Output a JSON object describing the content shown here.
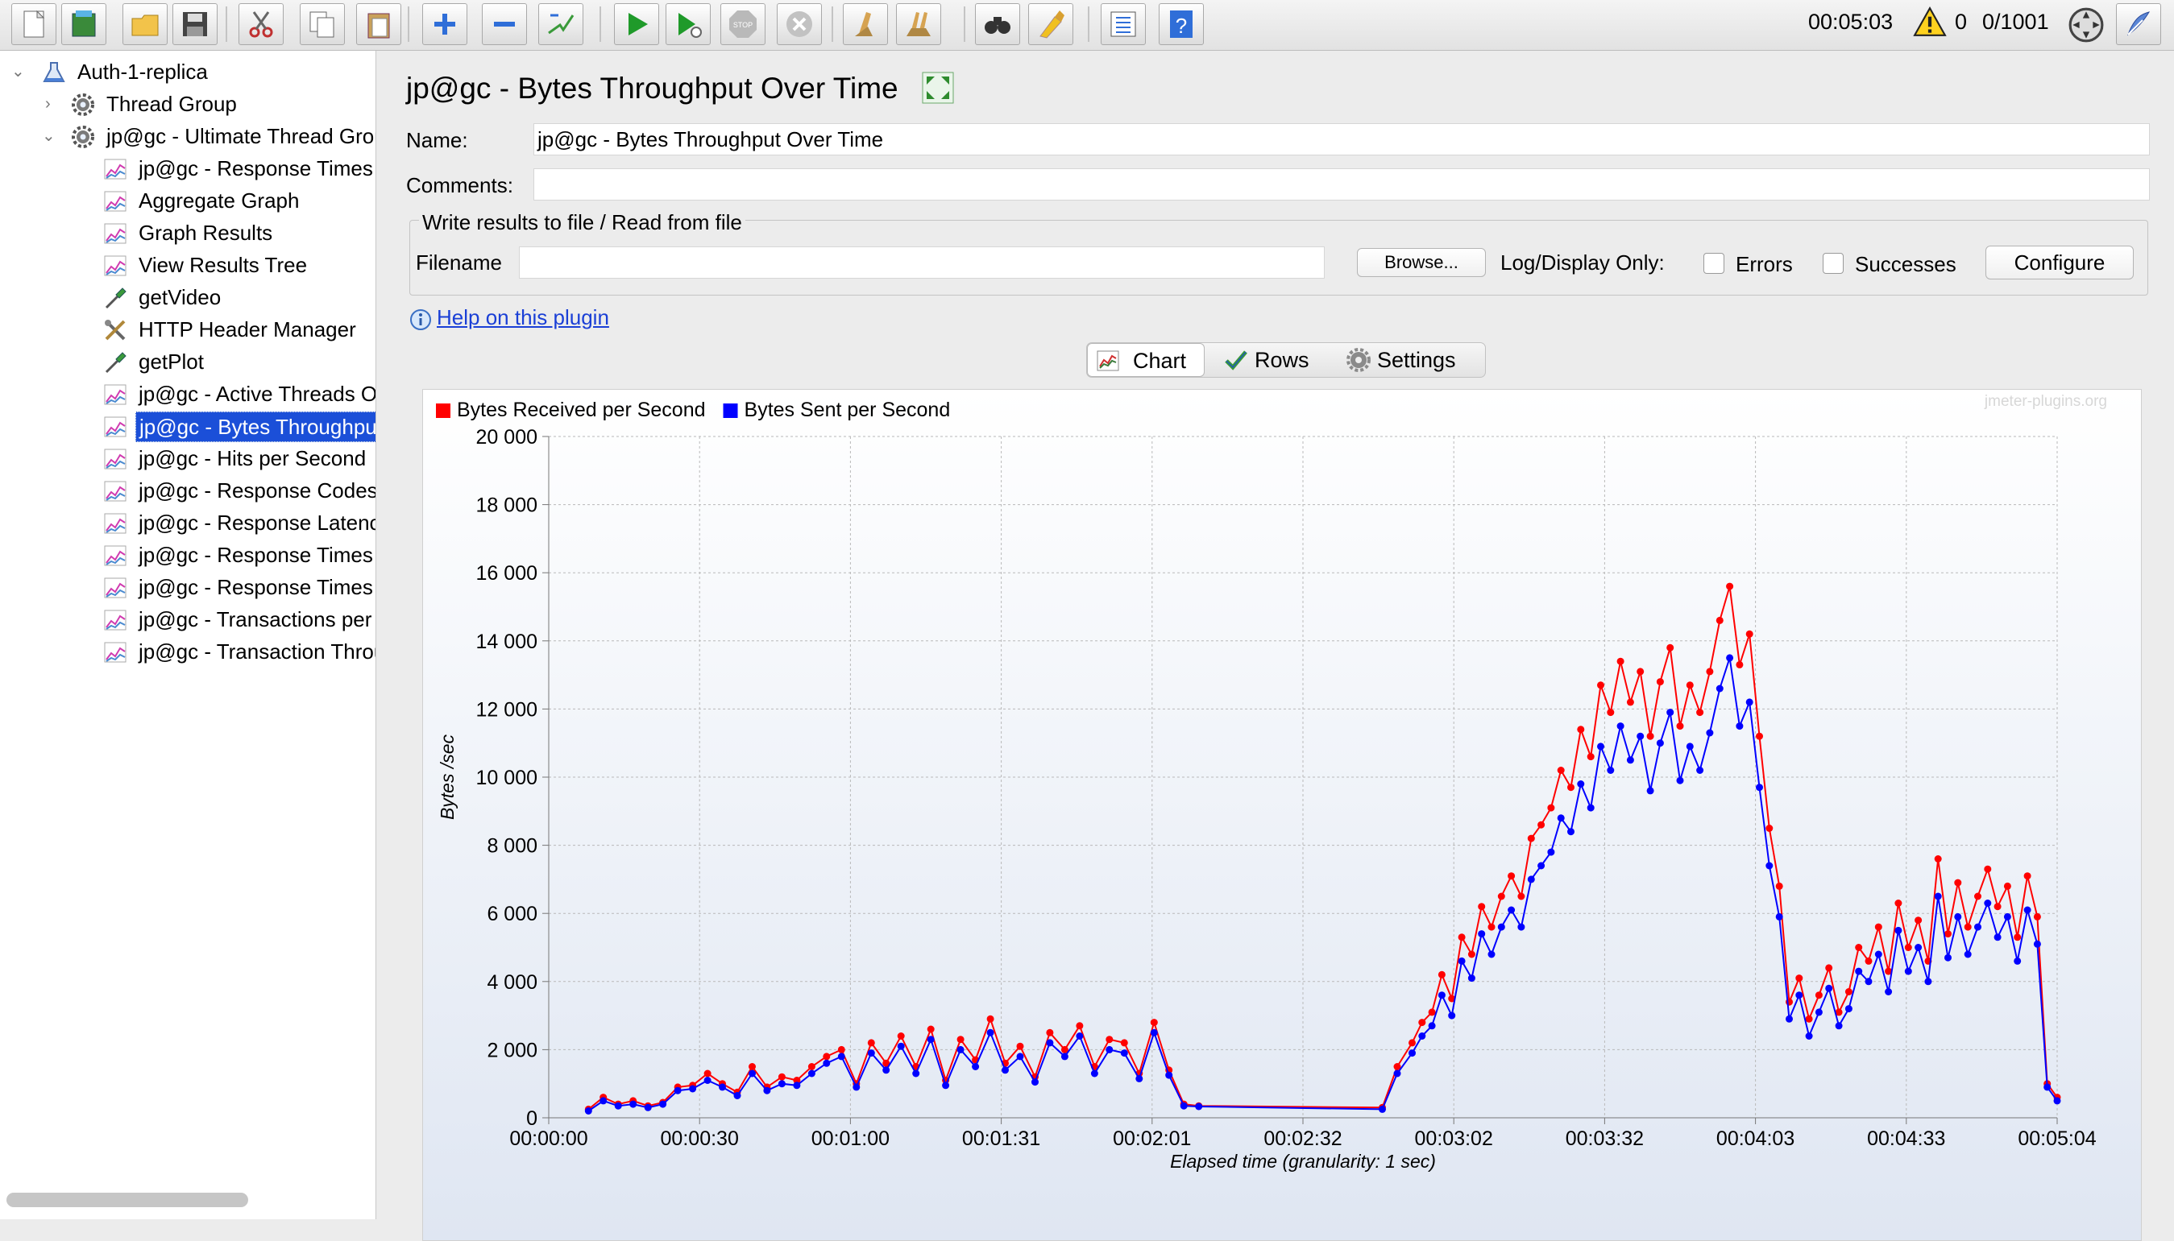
{
  "toolbar": {
    "buttons": [
      "new-icon",
      "templates-icon",
      "open-icon",
      "save-icon",
      "cut-icon",
      "copy-icon",
      "paste-icon",
      "expand-icon",
      "collapse-icon",
      "toggle-icon",
      "start-icon",
      "start-no-pauses-icon",
      "stop-icon",
      "shutdown-icon",
      "clear-icon",
      "clear-all-icon",
      "search-icon",
      "reset-search-icon",
      "function-helper-icon",
      "help-icon"
    ],
    "elapsed": "00:05:03",
    "warnings": "0",
    "threads": "0/1001"
  },
  "tree": {
    "root": "Auth-1-replica",
    "items": [
      {
        "label": "Thread Group",
        "icon": "gear-icon"
      },
      {
        "label": "jp@gc - Ultimate Thread Group",
        "icon": "gear-icon"
      },
      {
        "label": "jp@gc - Response Times Over Time",
        "icon": "graph-icon"
      },
      {
        "label": "Aggregate Graph",
        "icon": "graph-icon"
      },
      {
        "label": "Graph Results",
        "icon": "graph-icon"
      },
      {
        "label": "View Results Tree",
        "icon": "graph-icon"
      },
      {
        "label": "getVideo",
        "icon": "pipette-icon"
      },
      {
        "label": "HTTP Header Manager",
        "icon": "tools-icon"
      },
      {
        "label": "getPlot",
        "icon": "pipette-icon"
      },
      {
        "label": "jp@gc - Active Threads Over Time",
        "icon": "graph-icon"
      },
      {
        "label": "jp@gc - Bytes Throughput Over Time",
        "icon": "graph-icon"
      },
      {
        "label": "jp@gc - Hits per Second",
        "icon": "graph-icon"
      },
      {
        "label": "jp@gc - Response Codes per Second",
        "icon": "graph-icon"
      },
      {
        "label": "jp@gc - Response Latencies Over Time",
        "icon": "graph-icon"
      },
      {
        "label": "jp@gc - Response Times Distribution",
        "icon": "graph-icon"
      },
      {
        "label": "jp@gc - Response Times Percentiles",
        "icon": "graph-icon"
      },
      {
        "label": "jp@gc - Transactions per Second",
        "icon": "graph-icon"
      },
      {
        "label": "jp@gc - Transaction Throughput vs Threads",
        "icon": "graph-icon"
      }
    ]
  },
  "main": {
    "title": "jp@gc - Bytes Throughput Over Time",
    "name_label": "Name:",
    "name_value": "jp@gc - Bytes Throughput Over Time",
    "comments_label": "Comments:",
    "comments_value": "",
    "file_section_title": "Write results to file / Read from file",
    "filename_label": "Filename",
    "filename_value": "",
    "browse_label": "Browse...",
    "log_display_label": "Log/Display Only:",
    "errors_label": "Errors",
    "successes_label": "Successes",
    "configure_label": "Configure",
    "help_link": "Help on this plugin",
    "tabs": [
      {
        "label": "Chart"
      },
      {
        "label": "Rows"
      },
      {
        "label": "Settings"
      }
    ]
  },
  "chart_data": {
    "type": "line",
    "watermark": "jmeter-plugins.org",
    "xlabel": "Elapsed time (granularity: 1 sec)",
    "ylabel": "Bytes /sec",
    "x_tick_labels": [
      "00:00:00",
      "00:00:30",
      "00:01:00",
      "00:01:31",
      "00:02:01",
      "00:02:32",
      "00:03:02",
      "00:03:32",
      "00:04:03",
      "00:04:33",
      "00:05:04"
    ],
    "y_tick_labels": [
      "0",
      "2 000",
      "4 000",
      "6 000",
      "8 000",
      "10 000",
      "12 000",
      "14 000",
      "16 000",
      "18 000",
      "20 000"
    ],
    "ylim": [
      0,
      20000
    ],
    "xlim_seconds": [
      0,
      304
    ],
    "grid": true,
    "legend": "top-left",
    "series": [
      {
        "name": "Bytes Received per Second",
        "color": "#ff0000",
        "points": [
          [
            8,
            250
          ],
          [
            11,
            600
          ],
          [
            14,
            400
          ],
          [
            17,
            500
          ],
          [
            20,
            350
          ],
          [
            23,
            450
          ],
          [
            26,
            900
          ],
          [
            29,
            950
          ],
          [
            32,
            1300
          ],
          [
            35,
            1000
          ],
          [
            38,
            750
          ],
          [
            41,
            1500
          ],
          [
            44,
            900
          ],
          [
            47,
            1200
          ],
          [
            50,
            1100
          ],
          [
            53,
            1500
          ],
          [
            56,
            1800
          ],
          [
            59,
            2000
          ],
          [
            62,
            1000
          ],
          [
            65,
            2200
          ],
          [
            68,
            1600
          ],
          [
            71,
            2400
          ],
          [
            74,
            1500
          ],
          [
            77,
            2600
          ],
          [
            80,
            1100
          ],
          [
            83,
            2300
          ],
          [
            86,
            1700
          ],
          [
            89,
            2900
          ],
          [
            92,
            1600
          ],
          [
            95,
            2100
          ],
          [
            98,
            1200
          ],
          [
            101,
            2500
          ],
          [
            104,
            2000
          ],
          [
            107,
            2700
          ],
          [
            110,
            1500
          ],
          [
            113,
            2300
          ],
          [
            116,
            2200
          ],
          [
            119,
            1300
          ],
          [
            122,
            2800
          ],
          [
            125,
            1400
          ],
          [
            128,
            400
          ],
          [
            131,
            350
          ],
          [
            168,
            300
          ],
          [
            171,
            1500
          ],
          [
            174,
            2200
          ],
          [
            176,
            2800
          ],
          [
            178,
            3100
          ],
          [
            180,
            4200
          ],
          [
            182,
            3500
          ],
          [
            184,
            5300
          ],
          [
            186,
            4800
          ],
          [
            188,
            6200
          ],
          [
            190,
            5600
          ],
          [
            192,
            6500
          ],
          [
            194,
            7100
          ],
          [
            196,
            6500
          ],
          [
            198,
            8200
          ],
          [
            200,
            8600
          ],
          [
            202,
            9100
          ],
          [
            204,
            10200
          ],
          [
            206,
            9700
          ],
          [
            208,
            11400
          ],
          [
            210,
            10600
          ],
          [
            212,
            12700
          ],
          [
            214,
            11900
          ],
          [
            216,
            13400
          ],
          [
            218,
            12200
          ],
          [
            220,
            13100
          ],
          [
            222,
            11200
          ],
          [
            224,
            12800
          ],
          [
            226,
            13800
          ],
          [
            228,
            11500
          ],
          [
            230,
            12700
          ],
          [
            232,
            11900
          ],
          [
            234,
            13100
          ],
          [
            236,
            14600
          ],
          [
            238,
            15600
          ],
          [
            240,
            13300
          ],
          [
            242,
            14200
          ],
          [
            244,
            11200
          ],
          [
            246,
            8500
          ],
          [
            248,
            6800
          ],
          [
            250,
            3400
          ],
          [
            252,
            4100
          ],
          [
            254,
            2900
          ],
          [
            256,
            3600
          ],
          [
            258,
            4400
          ],
          [
            260,
            3100
          ],
          [
            262,
            3700
          ],
          [
            264,
            5000
          ],
          [
            266,
            4600
          ],
          [
            268,
            5600
          ],
          [
            270,
            4300
          ],
          [
            272,
            6300
          ],
          [
            274,
            5000
          ],
          [
            276,
            5800
          ],
          [
            278,
            4600
          ],
          [
            280,
            7600
          ],
          [
            282,
            5400
          ],
          [
            284,
            6900
          ],
          [
            286,
            5600
          ],
          [
            288,
            6500
          ],
          [
            290,
            7300
          ],
          [
            292,
            6200
          ],
          [
            294,
            6800
          ],
          [
            296,
            5300
          ],
          [
            298,
            7100
          ],
          [
            300,
            5900
          ],
          [
            302,
            1000
          ],
          [
            304,
            600
          ]
        ]
      },
      {
        "name": "Bytes Sent per Second",
        "color": "#0000ff",
        "points": [
          [
            8,
            200
          ],
          [
            11,
            500
          ],
          [
            14,
            350
          ],
          [
            17,
            400
          ],
          [
            20,
            300
          ],
          [
            23,
            400
          ],
          [
            26,
            800
          ],
          [
            29,
            850
          ],
          [
            32,
            1100
          ],
          [
            35,
            900
          ],
          [
            38,
            650
          ],
          [
            41,
            1300
          ],
          [
            44,
            800
          ],
          [
            47,
            1000
          ],
          [
            50,
            950
          ],
          [
            53,
            1300
          ],
          [
            56,
            1600
          ],
          [
            59,
            1800
          ],
          [
            62,
            900
          ],
          [
            65,
            1900
          ],
          [
            68,
            1400
          ],
          [
            71,
            2100
          ],
          [
            74,
            1300
          ],
          [
            77,
            2300
          ],
          [
            80,
            950
          ],
          [
            83,
            2000
          ],
          [
            86,
            1500
          ],
          [
            89,
            2500
          ],
          [
            92,
            1400
          ],
          [
            95,
            1800
          ],
          [
            98,
            1050
          ],
          [
            101,
            2200
          ],
          [
            104,
            1800
          ],
          [
            107,
            2400
          ],
          [
            110,
            1300
          ],
          [
            113,
            2000
          ],
          [
            116,
            1900
          ],
          [
            119,
            1150
          ],
          [
            122,
            2500
          ],
          [
            125,
            1250
          ],
          [
            128,
            350
          ],
          [
            131,
            330
          ],
          [
            168,
            250
          ],
          [
            171,
            1300
          ],
          [
            174,
            1900
          ],
          [
            176,
            2400
          ],
          [
            178,
            2700
          ],
          [
            180,
            3600
          ],
          [
            182,
            3000
          ],
          [
            184,
            4600
          ],
          [
            186,
            4100
          ],
          [
            188,
            5400
          ],
          [
            190,
            4800
          ],
          [
            192,
            5600
          ],
          [
            194,
            6100
          ],
          [
            196,
            5600
          ],
          [
            198,
            7000
          ],
          [
            200,
            7400
          ],
          [
            202,
            7800
          ],
          [
            204,
            8800
          ],
          [
            206,
            8400
          ],
          [
            208,
            9800
          ],
          [
            210,
            9100
          ],
          [
            212,
            10900
          ],
          [
            214,
            10200
          ],
          [
            216,
            11500
          ],
          [
            218,
            10500
          ],
          [
            220,
            11200
          ],
          [
            222,
            9600
          ],
          [
            224,
            11000
          ],
          [
            226,
            11900
          ],
          [
            228,
            9900
          ],
          [
            230,
            10900
          ],
          [
            232,
            10200
          ],
          [
            234,
            11300
          ],
          [
            236,
            12600
          ],
          [
            238,
            13500
          ],
          [
            240,
            11500
          ],
          [
            242,
            12200
          ],
          [
            244,
            9700
          ],
          [
            246,
            7400
          ],
          [
            248,
            5900
          ],
          [
            250,
            2900
          ],
          [
            252,
            3600
          ],
          [
            254,
            2400
          ],
          [
            256,
            3100
          ],
          [
            258,
            3800
          ],
          [
            260,
            2700
          ],
          [
            262,
            3200
          ],
          [
            264,
            4300
          ],
          [
            266,
            4000
          ],
          [
            268,
            4800
          ],
          [
            270,
            3700
          ],
          [
            272,
            5500
          ],
          [
            274,
            4300
          ],
          [
            276,
            5000
          ],
          [
            278,
            4000
          ],
          [
            280,
            6500
          ],
          [
            282,
            4700
          ],
          [
            284,
            5900
          ],
          [
            286,
            4800
          ],
          [
            288,
            5600
          ],
          [
            290,
            6300
          ],
          [
            292,
            5300
          ],
          [
            294,
            5900
          ],
          [
            296,
            4600
          ],
          [
            298,
            6100
          ],
          [
            300,
            5100
          ],
          [
            302,
            900
          ],
          [
            304,
            500
          ]
        ]
      }
    ]
  }
}
